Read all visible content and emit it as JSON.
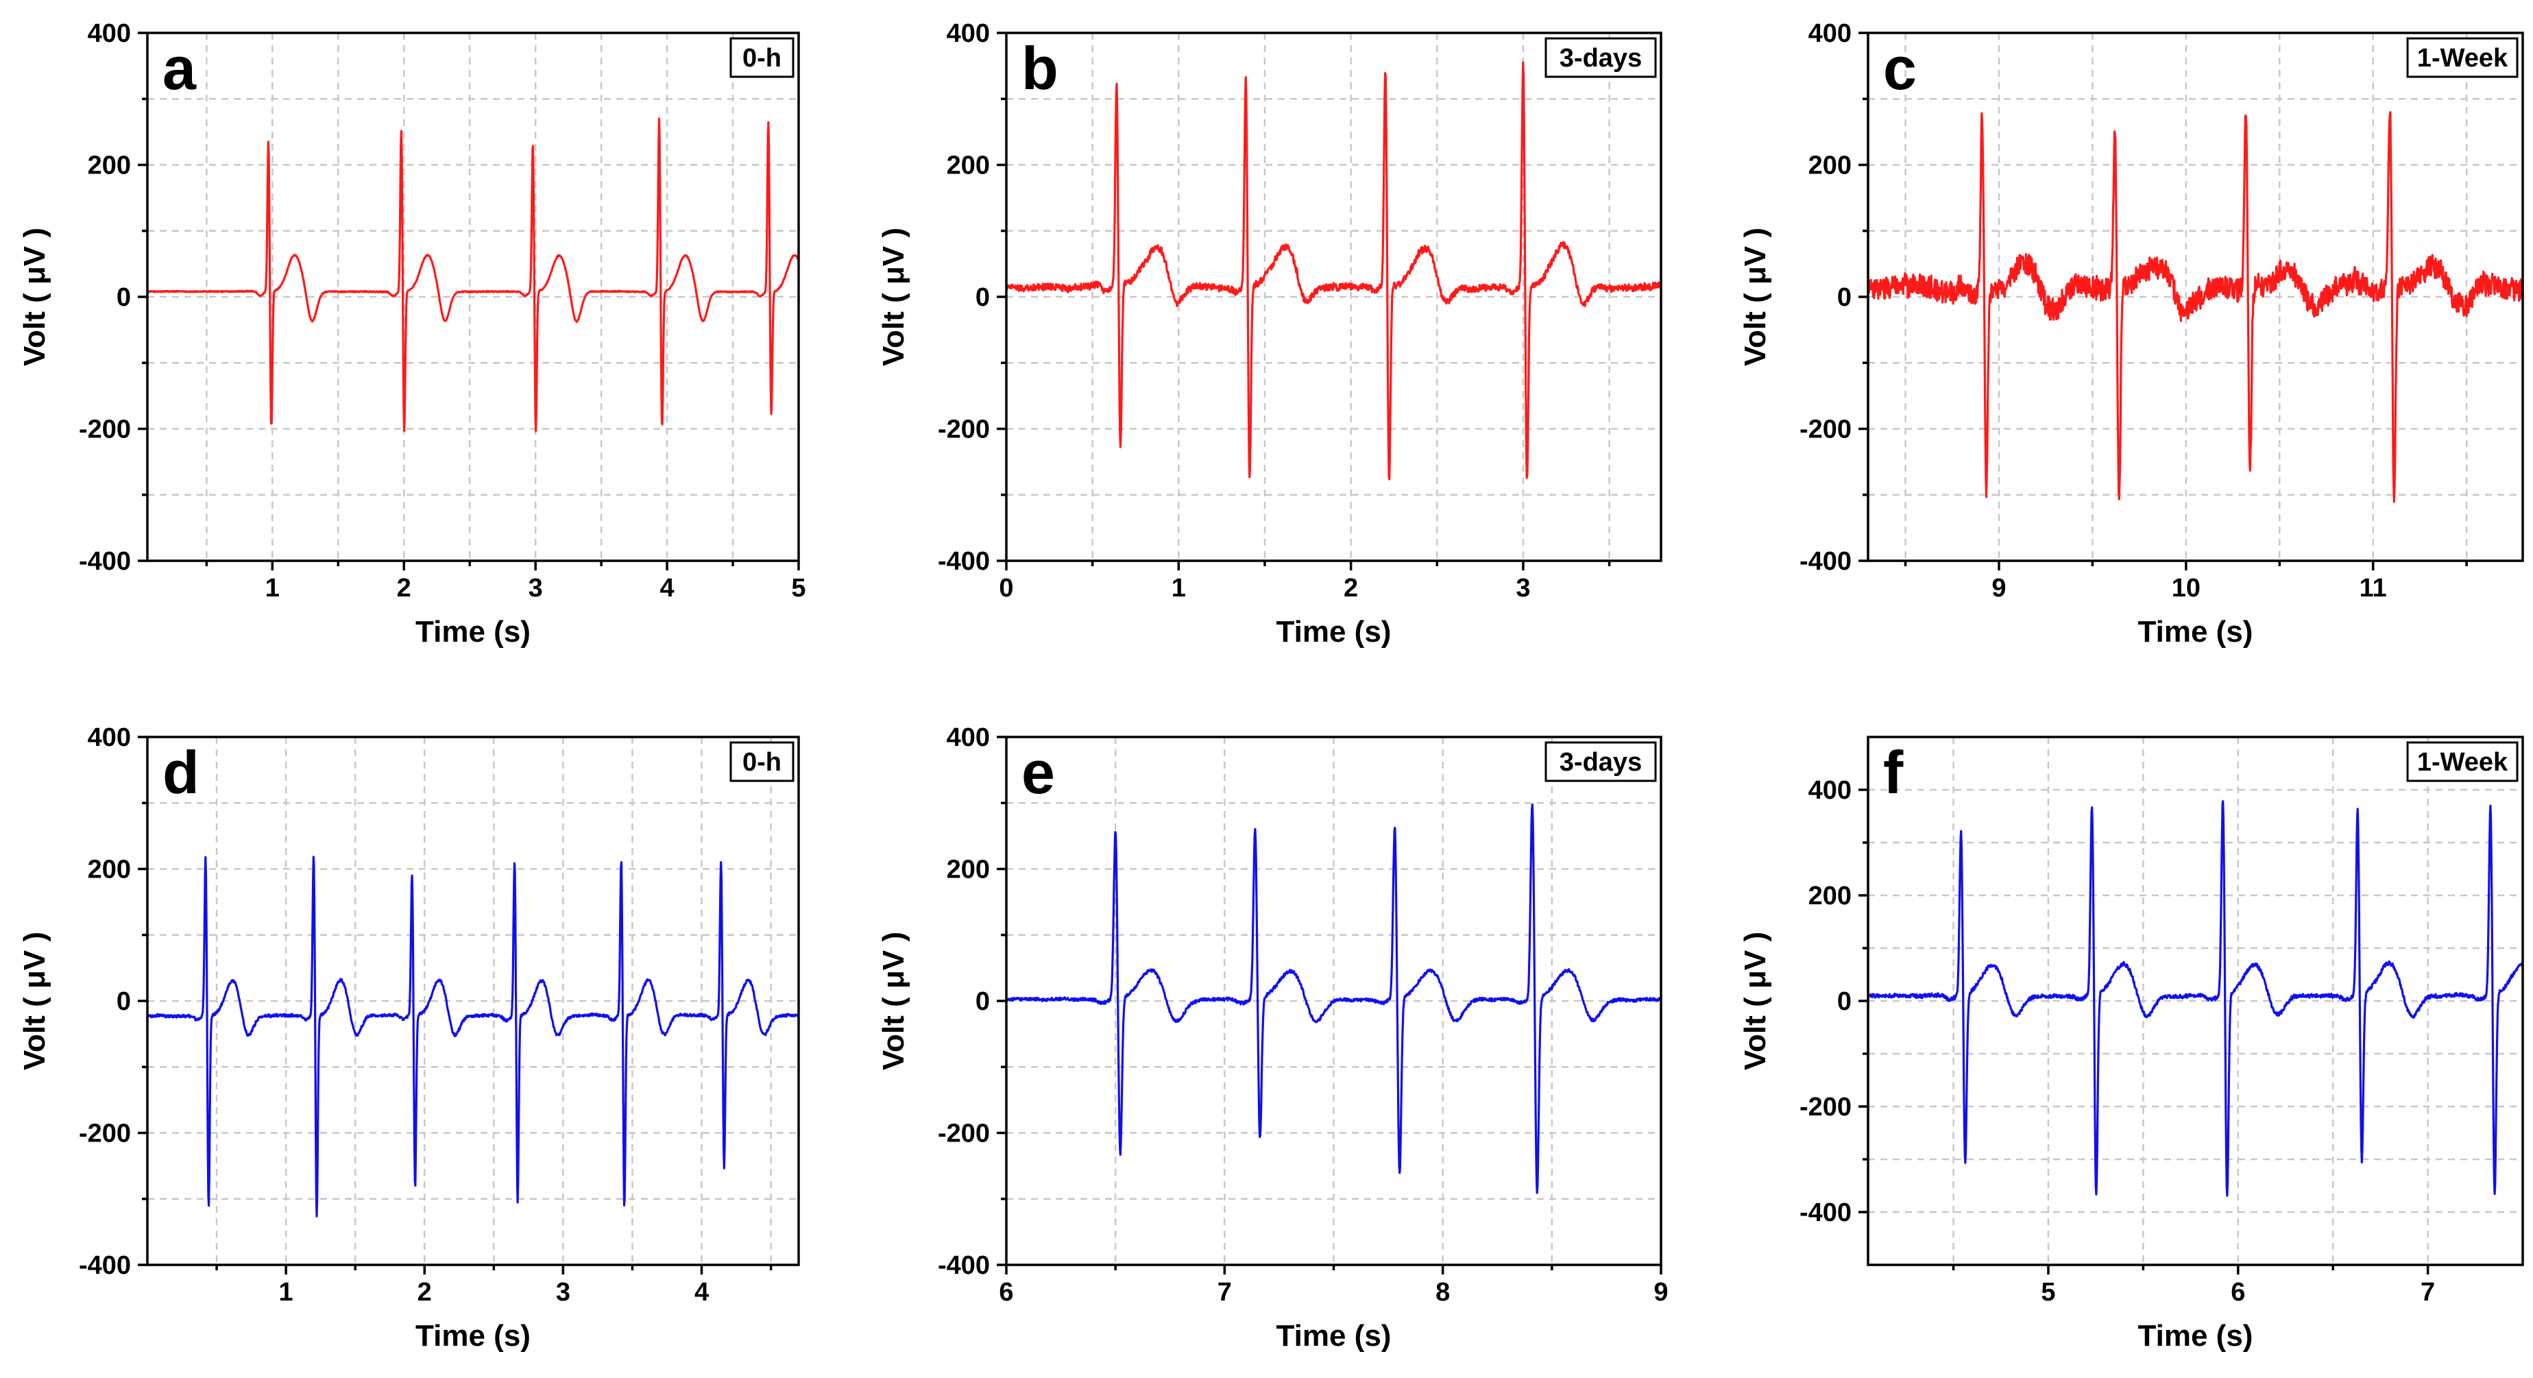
{
  "chart_data": [
    {
      "id": "a",
      "type": "line",
      "panel_label": "a",
      "badge": "0-h",
      "xlabel": "Time (s)",
      "ylabel": "Volt ( μV )",
      "xlim": [
        0.05,
        5.0
      ],
      "ylim": [
        -400,
        400
      ],
      "xticks": [
        1,
        2,
        3,
        4,
        5
      ],
      "xgrid": [
        0.5,
        1.5,
        2.5,
        3.5,
        4.5
      ],
      "yticks": [
        -400,
        -200,
        0,
        200,
        400
      ],
      "ygrid": [
        -300,
        -100,
        100,
        300
      ],
      "color": "#ff1a1a",
      "noise": 1.5,
      "beats": [
        {
          "t": 0.97,
          "r": 230,
          "s": -210
        },
        {
          "t": 1.98,
          "r": 248,
          "s": -215
        },
        {
          "t": 2.98,
          "r": 228,
          "s": -215
        },
        {
          "t": 3.94,
          "r": 265,
          "s": -210
        },
        {
          "t": 4.77,
          "r": 260,
          "s": -190
        }
      ],
      "tWave": {
        "amp": 55,
        "delay": 0.2,
        "width": 0.055
      },
      "dip": {
        "amp": -48,
        "delay": 0.33,
        "width": 0.035
      },
      "baseline": 8
    },
    {
      "id": "b",
      "type": "line",
      "panel_label": "b",
      "badge": "3-days",
      "xlabel": "Time (s)",
      "ylabel": "Volt ( μV )",
      "xlim": [
        0.0,
        3.8
      ],
      "ylim": [
        -400,
        400
      ],
      "xticks": [
        0,
        1,
        2,
        3
      ],
      "xgrid": [
        0.5,
        1.5,
        2.5,
        3.5
      ],
      "yticks": [
        -400,
        -200,
        0,
        200,
        400
      ],
      "ygrid": [
        -300,
        -100,
        100,
        300
      ],
      "color": "#ff1a1a",
      "noise": 10,
      "beats": [
        {
          "t": 0.64,
          "r": 310,
          "s": -250
        },
        {
          "t": 1.39,
          "r": 322,
          "s": -290
        },
        {
          "t": 2.2,
          "r": 335,
          "s": -300
        },
        {
          "t": 3.0,
          "r": 340,
          "s": -300
        }
      ],
      "tWave": {
        "amp": 62,
        "delay": 0.24,
        "width": 0.075
      },
      "dip": {
        "amp": -45,
        "delay": 0.34,
        "width": 0.04
      },
      "baseline": 15
    },
    {
      "id": "c",
      "type": "line",
      "panel_label": "c",
      "badge": "1-Week",
      "xlabel": "Time (s)",
      "ylabel": "Volt ( μV )",
      "xlim": [
        8.3,
        11.8
      ],
      "ylim": [
        -400,
        400
      ],
      "xticks": [
        9,
        10,
        11
      ],
      "xgrid": [
        8.5,
        9.5,
        10.5,
        11.5
      ],
      "yticks": [
        -400,
        -200,
        0,
        200,
        400
      ],
      "ygrid": [
        -300,
        -100,
        100,
        300
      ],
      "color": "#ff1a1a",
      "noise": 34,
      "beats": [
        {
          "t": 8.91,
          "r": 272,
          "s": -310
        },
        {
          "t": 9.62,
          "r": 252,
          "s": -325
        },
        {
          "t": 10.32,
          "r": 280,
          "s": -275
        },
        {
          "t": 11.09,
          "r": 282,
          "s": -325
        }
      ],
      "tWave": {
        "amp": 38,
        "delay": 0.25,
        "width": 0.08
      },
      "dip": {
        "amp": -45,
        "delay": 0.36,
        "width": 0.05
      },
      "baseline": 12
    },
    {
      "id": "d",
      "type": "line",
      "panel_label": "d",
      "badge": "0-h",
      "xlabel": "Time (s)",
      "ylabel": "Volt ( μV )",
      "xlim": [
        0.0,
        4.7
      ],
      "ylim": [
        -400,
        400
      ],
      "xticks": [
        1,
        2,
        3,
        4
      ],
      "xgrid": [
        0.5,
        1.5,
        2.5,
        3.5,
        4.5
      ],
      "yticks": [
        -400,
        -200,
        0,
        200,
        400
      ],
      "ygrid": [
        -300,
        -100,
        100,
        300
      ],
      "color": "#1010ee",
      "noise": 4,
      "beats": [
        {
          "t": 0.42,
          "r": 242,
          "s": -295
        },
        {
          "t": 1.2,
          "r": 248,
          "s": -308
        },
        {
          "t": 1.91,
          "r": 215,
          "s": -265
        },
        {
          "t": 2.65,
          "r": 238,
          "s": -285
        },
        {
          "t": 3.42,
          "r": 240,
          "s": -295
        },
        {
          "t": 4.14,
          "r": 233,
          "s": -235
        }
      ],
      "tWave": {
        "amp": 55,
        "delay": 0.2,
        "width": 0.055
      },
      "dip": {
        "amp": -38,
        "delay": 0.3,
        "width": 0.04
      },
      "baseline": -22
    },
    {
      "id": "e",
      "type": "line",
      "panel_label": "e",
      "badge": "3-days",
      "xlabel": "Time (s)",
      "ylabel": "Volt ( μV )",
      "xlim": [
        6.0,
        9.0
      ],
      "ylim": [
        -400,
        400
      ],
      "xticks": [
        6,
        7,
        8,
        9
      ],
      "xgrid": [
        6.5,
        7.5,
        8.5
      ],
      "yticks": [
        -400,
        -200,
        0,
        200,
        400
      ],
      "ygrid": [
        -300,
        -100,
        100,
        300
      ],
      "color": "#1010ee",
      "noise": 4.5,
      "beats": [
        {
          "t": 6.5,
          "r": 258,
          "s": -240
        },
        {
          "t": 7.14,
          "r": 260,
          "s": -215
        },
        {
          "t": 7.78,
          "r": 265,
          "s": -268
        },
        {
          "t": 8.41,
          "r": 300,
          "s": -298
        }
      ],
      "tWave": {
        "amp": 45,
        "delay": 0.17,
        "width": 0.06
      },
      "dip": {
        "amp": -42,
        "delay": 0.27,
        "width": 0.04
      },
      "baseline": 2
    },
    {
      "id": "f",
      "type": "line",
      "panel_label": "f",
      "badge": "1-Week",
      "xlabel": "Time (s)",
      "ylabel": "Volt ( μV )",
      "xlim": [
        4.05,
        7.5
      ],
      "ylim": [
        -500,
        500
      ],
      "xticks": [
        5,
        6,
        7
      ],
      "xgrid": [
        4.5,
        5.5,
        6.5
      ],
      "yticks": [
        -400,
        -200,
        0,
        200,
        400
      ],
      "ygrid": [
        -300,
        -100,
        100,
        300
      ],
      "color": "#1010ee",
      "noise": 7,
      "beats": [
        {
          "t": 4.54,
          "r": 318,
          "s": -320
        },
        {
          "t": 5.23,
          "r": 362,
          "s": -385
        },
        {
          "t": 5.92,
          "r": 378,
          "s": -385
        },
        {
          "t": 6.63,
          "r": 355,
          "s": -320
        },
        {
          "t": 7.33,
          "r": 362,
          "s": -385
        }
      ],
      "tWave": {
        "amp": 60,
        "delay": 0.17,
        "width": 0.06
      },
      "dip": {
        "amp": -48,
        "delay": 0.28,
        "width": 0.04
      },
      "baseline": 10
    }
  ]
}
